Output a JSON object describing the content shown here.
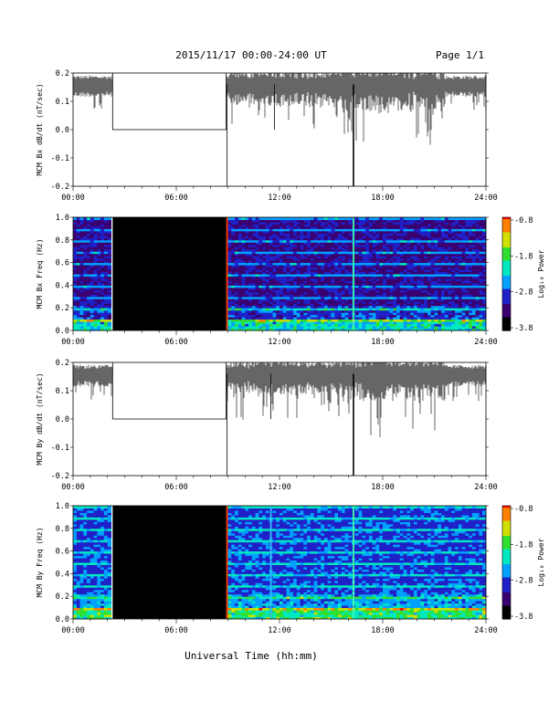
{
  "header": {
    "title": "2015/11/17  00:00-24:00 UT",
    "page": "Page 1/1"
  },
  "x_axis": {
    "label": "Universal Time (hh:mm)",
    "ticks": [
      "00:00",
      "06:00",
      "12:00",
      "18:00",
      "24:00"
    ]
  },
  "colorbar": {
    "label": "Log₁₀ Power",
    "ticks": [
      "-0.8",
      "-1.8",
      "-2.8",
      "-3.8"
    ]
  },
  "colors": {
    "data_gap": "#000000",
    "trace": "#000000",
    "colormap": [
      "#000000",
      "#3a0070",
      "#2020c8",
      "#00a0ff",
      "#00e8c0",
      "#30e030",
      "#d0e000",
      "#ff8000",
      "#ff0000"
    ]
  },
  "chart_data": [
    {
      "type": "line",
      "ylabel": "MCM Bx dB/dt (nT/sec)",
      "xlim": [
        0,
        24
      ],
      "ylim": [
        -0.2,
        0.2
      ],
      "yticks": [
        "0.2",
        "0.1",
        "0.0",
        "-0.1",
        "-0.2"
      ],
      "gap_hours": [
        2.3,
        8.9
      ],
      "gap_level": 0.0,
      "baseline_level": 0.16,
      "spikes": [
        {
          "hour": 11.7,
          "value": 0.0
        },
        {
          "hour": 16.3,
          "value": -0.2
        }
      ]
    },
    {
      "type": "heatmap",
      "ylabel": "MCM Bx Freq (Hz)",
      "xlim": [
        0,
        24
      ],
      "ylim": [
        0.0,
        1.0
      ],
      "yticks": [
        "1.0",
        "0.8",
        "0.6",
        "0.4",
        "0.2",
        "0.0"
      ],
      "zlim": [
        -3.8,
        -0.8
      ],
      "gap_hours": [
        2.3,
        9.0
      ],
      "bright_lines_hours": [
        8.95,
        16.3
      ]
    },
    {
      "type": "line",
      "ylabel": "MCM By dB/dt (nT/sec)",
      "xlim": [
        0,
        24
      ],
      "ylim": [
        -0.2,
        0.2
      ],
      "yticks": [
        "0.2",
        "0.1",
        "0.0",
        "-0.1",
        "-0.2"
      ],
      "gap_hours": [
        2.3,
        8.9
      ],
      "gap_level": 0.0,
      "baseline_level": 0.16,
      "spikes": [
        {
          "hour": 11.5,
          "value": 0.0
        },
        {
          "hour": 16.3,
          "value": -0.2
        }
      ]
    },
    {
      "type": "heatmap",
      "ylabel": "MCM By Freq (Hz)",
      "xlim": [
        0,
        24
      ],
      "ylim": [
        0.0,
        1.0
      ],
      "yticks": [
        "1.0",
        "0.8",
        "0.6",
        "0.4",
        "0.2",
        "0.0"
      ],
      "zlim": [
        -3.8,
        -0.8
      ],
      "gap_hours": [
        2.3,
        9.0
      ],
      "bright_lines_hours": [
        8.95,
        11.5,
        16.3
      ]
    }
  ]
}
